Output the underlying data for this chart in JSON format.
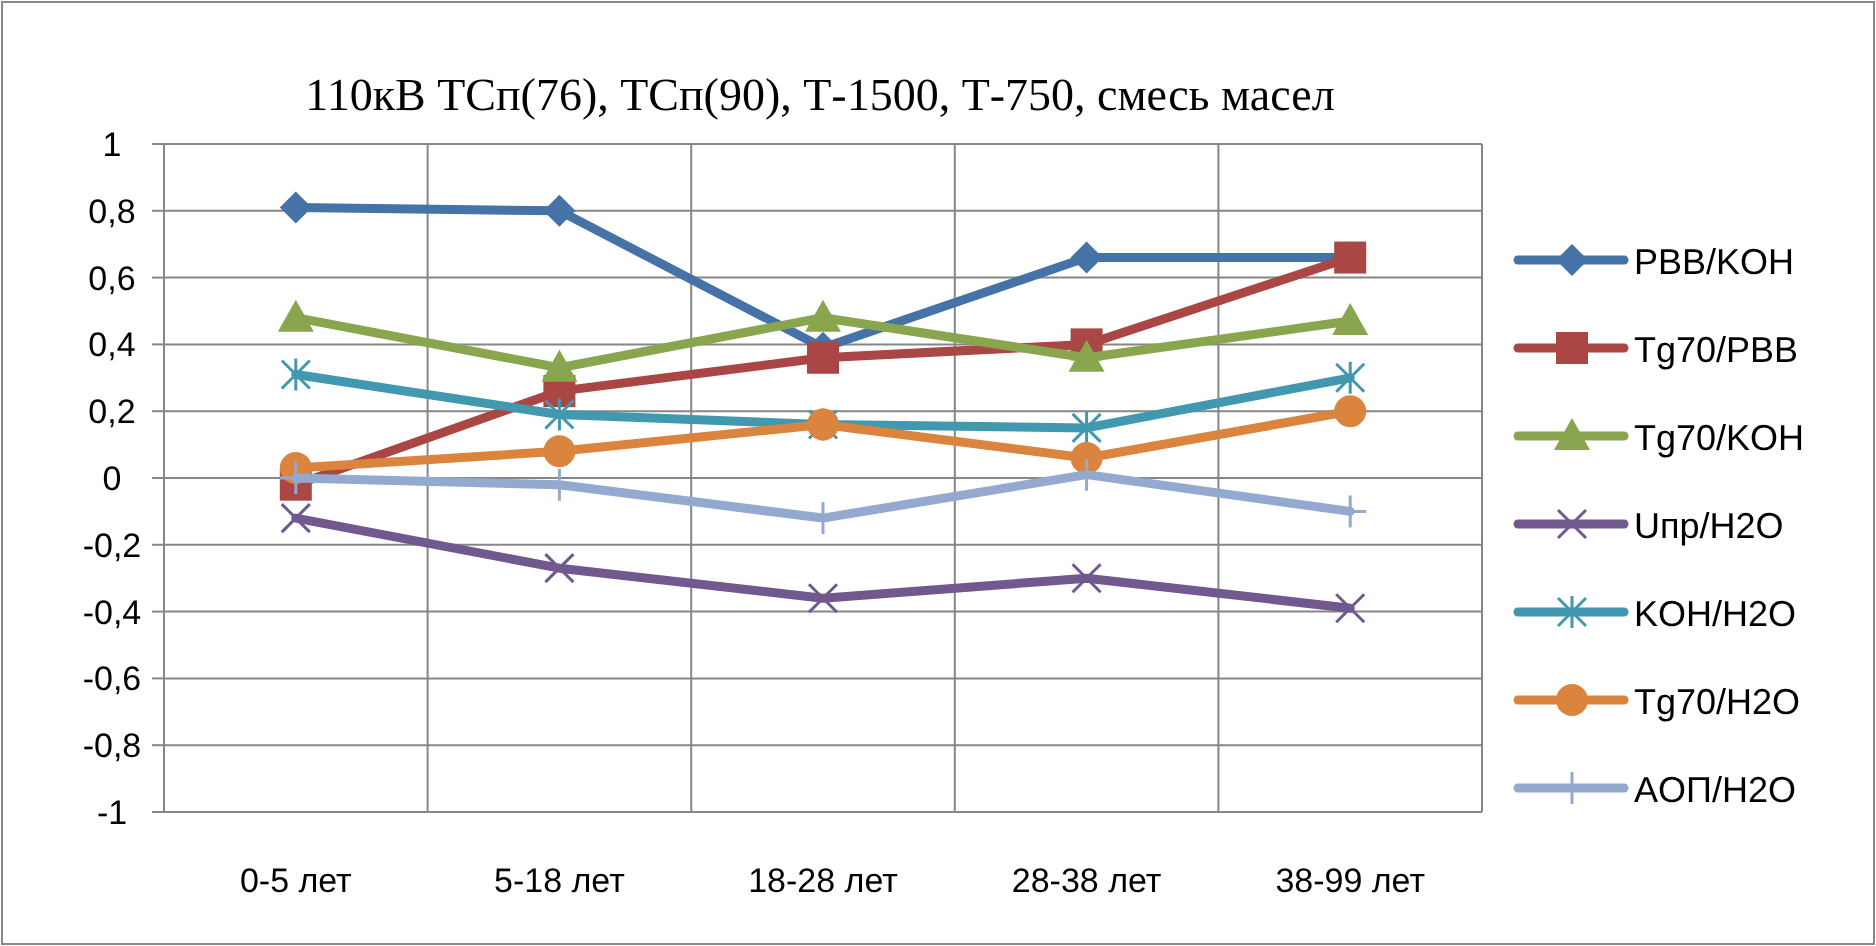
{
  "chart_data": {
    "type": "line",
    "title": "110кВ ТСп(76), ТСп(90), Т-1500, Т-750, смесь масел",
    "categories": [
      "0-5 лет",
      "5-18 лет",
      "18-28 лет",
      "28-38 лет",
      "38-99 лет"
    ],
    "ylim": [
      -1,
      1
    ],
    "yticks": [
      {
        "value": -1,
        "label": "-1"
      },
      {
        "value": -0.8,
        "label": "-0,8"
      },
      {
        "value": -0.6,
        "label": "-0,6"
      },
      {
        "value": -0.4,
        "label": "-0,4"
      },
      {
        "value": -0.2,
        "label": "-0,2"
      },
      {
        "value": 0,
        "label": "0"
      },
      {
        "value": 0.2,
        "label": "0,2"
      },
      {
        "value": 0.4,
        "label": "0,4"
      },
      {
        "value": 0.6,
        "label": "0,6"
      },
      {
        "value": 0.8,
        "label": "0,8"
      },
      {
        "value": 1,
        "label": "1"
      }
    ],
    "grid": true,
    "legend": "right",
    "series": [
      {
        "name": "PBB/KOH",
        "color": "#4572a7",
        "marker": "diamond",
        "values": [
          0.81,
          0.8,
          0.39,
          0.66,
          0.66
        ]
      },
      {
        "name": "Tg70/PBB",
        "color": "#aa4643",
        "marker": "square",
        "values": [
          -0.02,
          0.26,
          0.36,
          0.4,
          0.66
        ]
      },
      {
        "name": "Tg70/KOH",
        "color": "#89a54e",
        "marker": "triangle",
        "values": [
          0.48,
          0.33,
          0.48,
          0.36,
          0.47
        ]
      },
      {
        "name": "Uпр/H2O",
        "color": "#71588f",
        "marker": "x",
        "values": [
          -0.12,
          -0.27,
          -0.36,
          -0.3,
          -0.39
        ]
      },
      {
        "name": "KOH/H2O",
        "color": "#4198af",
        "marker": "cross",
        "values": [
          0.31,
          0.19,
          0.16,
          0.15,
          0.3
        ]
      },
      {
        "name": "Tg70/H2O",
        "color": "#db843d",
        "marker": "circle",
        "values": [
          0.03,
          0.08,
          0.16,
          0.06,
          0.2
        ]
      },
      {
        "name": "AОП/H2O",
        "color": "#93a9cf",
        "marker": "plus",
        "values": [
          0,
          -0.02,
          -0.12,
          0.01,
          -0.1
        ]
      }
    ]
  }
}
